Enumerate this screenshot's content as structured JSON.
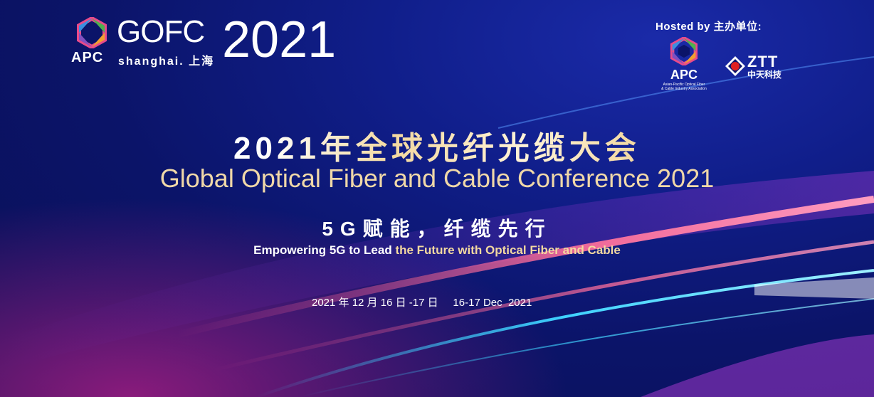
{
  "brand": {
    "apc": "APC",
    "gofc": "GOFC",
    "location": "shanghai. 上海",
    "year": "2021"
  },
  "hosts": {
    "label": "Hosted by 主办单位:",
    "apc_name": "APC",
    "apc_sub_1": "Asian-Pacific Optical Fiber",
    "apc_sub_2": "& Cable Industry Association",
    "ztt_name": "ZTT",
    "ztt_cn": "中天科技"
  },
  "title": {
    "cn": "2021年全球光纤光缆大会",
    "en": "Global Optical Fiber and Cable Conference 2021"
  },
  "slogan": {
    "cn": "5G赋能，纤缆先行",
    "en_part1": "Empowering 5G to Lead ",
    "en_part2": " the Future with Optical Fiber and Cable"
  },
  "date": "2021 年 12 月 16 日 -17 日     16-17 Dec  2021",
  "colors": {
    "background": "#0b1469",
    "gold": "#f0d8a8",
    "pink_streak": "#e0508c",
    "cyan_streak": "#3fd2ff"
  }
}
